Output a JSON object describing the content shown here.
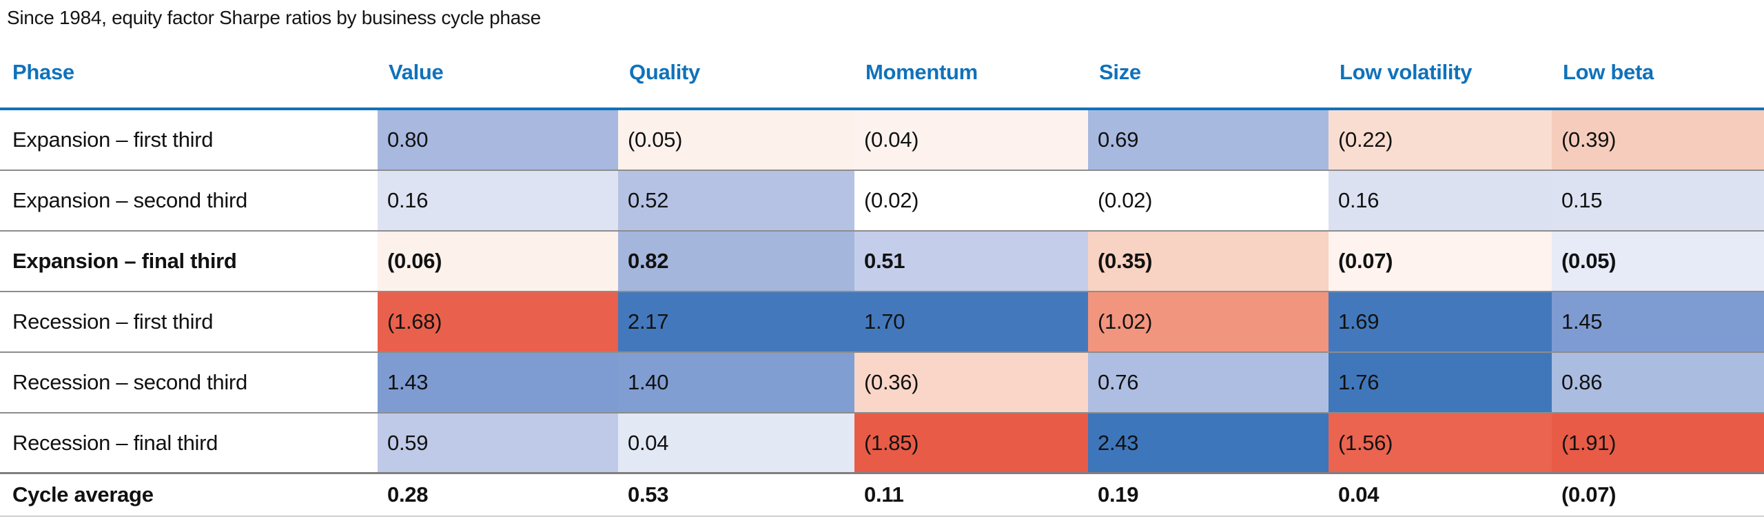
{
  "title": "Since 1984, equity factor Sharpe ratios by business cycle phase",
  "colors": {
    "header_blue": "#1072BA",
    "row_separator_gray": "#8c8c8c",
    "bottom_border_gray": "#cfcfcf",
    "strong_positive_blue": "#4379BC",
    "strong_negative_red": "#E85B46"
  },
  "table": {
    "columns": [
      "Phase",
      "Value",
      "Quality",
      "Momentum",
      "Size",
      "Low volatility",
      "Low beta"
    ],
    "rows": [
      {
        "phase": "Expansion – first third",
        "cells": [
          {
            "text": "0.80",
            "bg": "#A8B8DE"
          },
          {
            "text": "(0.05)",
            "bg": "#FDF1EC"
          },
          {
            "text": "(0.04)",
            "bg": "#FDF2EE"
          },
          {
            "text": "0.69",
            "bg": "#A8B9DF"
          },
          {
            "text": "(0.22)",
            "bg": "#F9DDD1"
          },
          {
            "text": "(0.39)",
            "bg": "#F6CDBC"
          }
        ]
      },
      {
        "phase": "Expansion – second third",
        "cells": [
          {
            "text": "0.16",
            "bg": "#DDE3F2"
          },
          {
            "text": "0.52",
            "bg": "#B5C2E4"
          },
          {
            "text": "(0.02)",
            "bg": "#FFFFFF"
          },
          {
            "text": "(0.02)",
            "bg": "#FFFFFF"
          },
          {
            "text": "0.16",
            "bg": "#DBE1F1"
          },
          {
            "text": "0.15",
            "bg": "#DCE2F1"
          }
        ]
      },
      {
        "phase": "Expansion – final third",
        "cells": [
          {
            "text": "(0.06)",
            "bg": "#FDF1EC"
          },
          {
            "text": "0.82",
            "bg": "#A5B6DD"
          },
          {
            "text": "0.51",
            "bg": "#C4CEEA"
          },
          {
            "text": "(0.35)",
            "bg": "#F8D2C2"
          },
          {
            "text": "(0.07)",
            "bg": "#FEF3EE"
          },
          {
            "text": "(0.05)",
            "bg": "#E7EBF7"
          }
        ]
      },
      {
        "phase": "Recession – first third",
        "cells": [
          {
            "text": "(1.68)",
            "bg": "#E9614C"
          },
          {
            "text": "2.17",
            "bg": "#4379BC"
          },
          {
            "text": "1.70",
            "bg": "#4379BC"
          },
          {
            "text": "(1.02)",
            "bg": "#F2957E"
          },
          {
            "text": "1.69",
            "bg": "#4379BC"
          },
          {
            "text": "1.45",
            "bg": "#7F9CD2"
          }
        ]
      },
      {
        "phase": "Recession – second third",
        "cells": [
          {
            "text": "1.43",
            "bg": "#7F9CD2"
          },
          {
            "text": "1.40",
            "bg": "#819ED3"
          },
          {
            "text": "(0.36)",
            "bg": "#F9D6C7"
          },
          {
            "text": "0.76",
            "bg": "#AEBEE2"
          },
          {
            "text": "1.76",
            "bg": "#4077BB"
          },
          {
            "text": "0.86",
            "bg": "#ABBCE1"
          }
        ]
      },
      {
        "phase": "Recession – final third",
        "cells": [
          {
            "text": "0.59",
            "bg": "#BFCAE8"
          },
          {
            "text": "0.04",
            "bg": "#E3E8F5"
          },
          {
            "text": "(1.85)",
            "bg": "#E85B46"
          },
          {
            "text": "2.43",
            "bg": "#3D76BB"
          },
          {
            "text": "(1.56)",
            "bg": "#EA6450"
          },
          {
            "text": "(1.91)",
            "bg": "#E85B46"
          }
        ]
      },
      {
        "phase": "Cycle average",
        "cells": [
          {
            "text": "0.28",
            "bg": "#FFFFFF"
          },
          {
            "text": "0.53",
            "bg": "#FFFFFF"
          },
          {
            "text": "0.11",
            "bg": "#FFFFFF"
          },
          {
            "text": "0.19",
            "bg": "#FFFFFF"
          },
          {
            "text": "0.04",
            "bg": "#FFFFFF"
          },
          {
            "text": "(0.07)",
            "bg": "#FFFFFF"
          }
        ]
      }
    ]
  },
  "chart_data": {
    "type": "heatmap",
    "title": "Since 1984, equity factor Sharpe ratios by business cycle phase",
    "rows": [
      "Expansion – first third",
      "Expansion – second third",
      "Expansion – final third",
      "Recession – first third",
      "Recession – second third",
      "Recession – final third",
      "Cycle average"
    ],
    "columns": [
      "Value",
      "Quality",
      "Momentum",
      "Size",
      "Low volatility",
      "Low beta"
    ],
    "values": [
      [
        0.8,
        -0.05,
        -0.04,
        0.69,
        -0.22,
        -0.39
      ],
      [
        0.16,
        0.52,
        -0.02,
        -0.02,
        0.16,
        0.15
      ],
      [
        -0.06,
        0.82,
        0.51,
        -0.35,
        -0.07,
        -0.05
      ],
      [
        -1.68,
        2.17,
        1.7,
        -1.02,
        1.69,
        1.45
      ],
      [
        1.43,
        1.4,
        -0.36,
        0.76,
        1.76,
        0.86
      ],
      [
        0.59,
        0.04,
        -1.85,
        2.43,
        -1.56,
        -1.91
      ],
      [
        0.28,
        0.53,
        0.11,
        0.19,
        0.04,
        -0.07
      ]
    ],
    "notes": "Negative values shown in parentheses. Cell shading: blue = positive Sharpe ratio, red = negative; intensity scales with magnitude. Cycle average row has no shading. Bold rows: Expansion – final third, Cycle average."
  }
}
